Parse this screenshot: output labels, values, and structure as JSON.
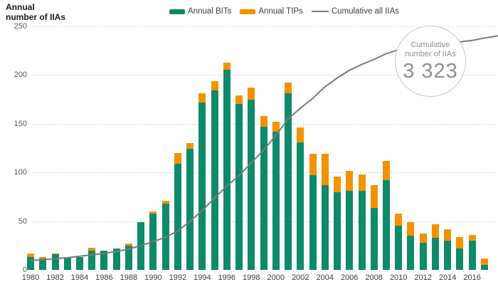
{
  "title": {
    "line1": "Annual",
    "line2": "number of IIAs"
  },
  "legend": [
    {
      "label": "Annual BITs",
      "type": "swatch",
      "color": "#0d8a6a"
    },
    {
      "label": "Annual TIPs",
      "type": "swatch",
      "color": "#f39200"
    },
    {
      "label": "Cumulative all IIAs",
      "type": "line",
      "color": "#7a7a7a"
    }
  ],
  "annotation": {
    "line1": "Cumulative",
    "line2": "number of IIAs",
    "value": "3 323"
  },
  "colors": {
    "bits_green": "#0d8a6a",
    "tips_orange": "#f39200",
    "cumulative_gray": "#7a7a7a",
    "gridline_gray": "#b0b0b0",
    "circle_border": "#c6c6c6"
  },
  "y_axis": {
    "ticks": [
      250,
      200,
      150,
      100,
      50,
      0
    ],
    "max": 250
  },
  "x_axis": {
    "tick_years": [
      1980,
      1982,
      1984,
      1986,
      1988,
      1990,
      1992,
      1994,
      1996,
      1998,
      2000,
      2002,
      2004,
      2006,
      2008,
      2010,
      2012,
      2014,
      2016
    ]
  },
  "chart_data": {
    "type": "bar",
    "subtype": "stacked bars with overlaid cumulative line",
    "title": "Annual number of IIAs",
    "ylim": [
      0,
      250
    ],
    "grid": "horizontal-dotted",
    "legend_position": "top-center",
    "x": [
      1980,
      1981,
      1982,
      1983,
      1984,
      1985,
      1986,
      1987,
      1988,
      1989,
      1990,
      1991,
      1992,
      1993,
      1994,
      1995,
      1996,
      1997,
      1998,
      1999,
      2000,
      2001,
      2002,
      2003,
      2004,
      2005,
      2006,
      2007,
      2008,
      2009,
      2010,
      2011,
      2012,
      2013,
      2014,
      2015,
      2016,
      2017
    ],
    "series": [
      {
        "name": "Annual BITs",
        "type": "bar",
        "stack": "iia",
        "color": "#0d8a6a",
        "values": [
          13,
          12,
          16,
          13,
          13,
          20,
          20,
          22,
          25,
          49,
          58,
          68,
          109,
          124,
          172,
          184,
          205,
          170,
          175,
          147,
          142,
          181,
          131,
          97,
          87,
          80,
          81,
          81,
          64,
          92,
          45,
          35,
          28,
          33,
          30,
          22,
          30,
          5
        ]
      },
      {
        "name": "Annual TIPs",
        "type": "bar",
        "stack": "iia",
        "color": "#f39200",
        "values": [
          4,
          1,
          1,
          0,
          0,
          3,
          0,
          0,
          2,
          0,
          2,
          3,
          11,
          6,
          9,
          10,
          8,
          9,
          12,
          11,
          10,
          11,
          15,
          22,
          32,
          16,
          21,
          17,
          23,
          20,
          13,
          14,
          9,
          14,
          12,
          12,
          6,
          7
        ]
      },
      {
        "name": "Cumulative all IIAs",
        "type": "line",
        "color": "#7a7a7a",
        "note": "drawn on hidden secondary scale; values below are left-axis-equivalent plotting heights; final cumulative total labelled 3 323",
        "values": [
          9.5,
          10.5,
          11.5,
          12.5,
          14,
          15.5,
          17,
          19,
          21.5,
          25,
          29,
          33.5,
          40,
          50,
          61,
          74,
          86,
          97,
          110,
          123,
          138,
          155,
          166,
          176,
          188,
          197,
          205,
          211,
          216,
          222,
          226,
          228,
          230,
          231.5,
          233,
          234,
          235.5,
          238
        ],
        "end_label": "3 323"
      }
    ]
  }
}
